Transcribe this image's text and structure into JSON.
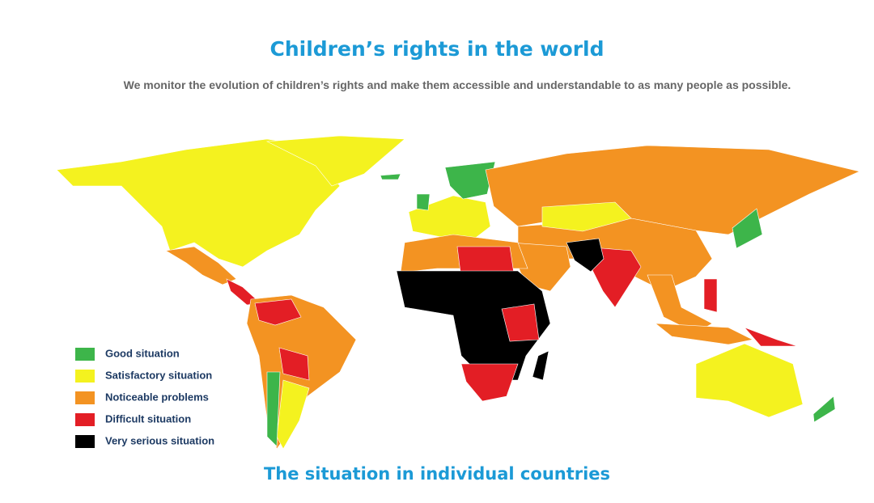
{
  "header": {
    "title": "Children’s rights in the world",
    "subtitle": "We monitor the evolution of children’s rights and make them accessible and understandable to as many people as possible."
  },
  "legend": [
    {
      "label": "Good situation",
      "color": "#3db54a"
    },
    {
      "label": "Satisfactory situation",
      "color": "#f4f21f"
    },
    {
      "label": "Noticeable problems",
      "color": "#f39322"
    },
    {
      "label": "Difficult situation",
      "color": "#e31e25"
    },
    {
      "label": "Very serious situation",
      "color": "#000000"
    }
  ],
  "section": {
    "title": "The situation in individual countries"
  }
}
